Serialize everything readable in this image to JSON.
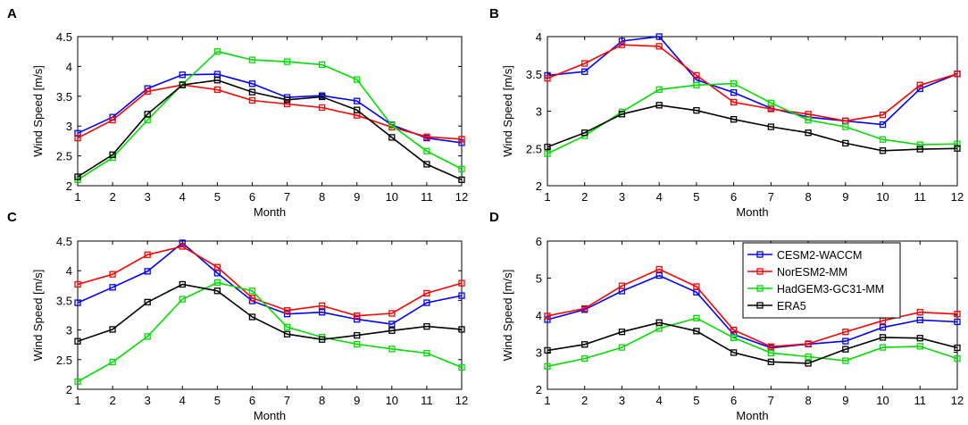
{
  "chart_data": [
    {
      "type": "line",
      "panel_label": "A",
      "xlabel": "Month",
      "ylabel": "Wind Speed [m/s]",
      "categories": [
        1,
        2,
        3,
        4,
        5,
        6,
        7,
        8,
        9,
        10,
        11,
        12
      ],
      "xticks": [
        "1",
        "2",
        "3",
        "4",
        "5",
        "6",
        "7",
        "8",
        "9",
        "10",
        "11",
        "12"
      ],
      "ylim": [
        2,
        4.5
      ],
      "yticks": [
        "2",
        "2.5",
        "3",
        "3.5",
        "4",
        "4.5"
      ],
      "series": [
        {
          "name": "CESM2-WACCM",
          "color": "#0000ff",
          "values": [
            2.88,
            3.15,
            3.63,
            3.86,
            3.87,
            3.71,
            3.48,
            3.51,
            3.42,
            3.02,
            2.8,
            2.72
          ]
        },
        {
          "name": "NorESM2-MM",
          "color": "#ff0000",
          "values": [
            2.8,
            3.1,
            3.58,
            3.69,
            3.61,
            3.43,
            3.37,
            3.31,
            3.18,
            2.98,
            2.82,
            2.78
          ]
        },
        {
          "name": "HadGEM3-GC31-MM",
          "color": "#00dd00",
          "values": [
            2.1,
            2.47,
            3.1,
            3.7,
            4.25,
            4.11,
            4.08,
            4.03,
            3.78,
            3.01,
            2.58,
            2.28
          ]
        },
        {
          "name": "ERA5",
          "color": "#000000",
          "values": [
            2.15,
            2.52,
            3.2,
            3.69,
            3.77,
            3.57,
            3.44,
            3.49,
            3.27,
            2.81,
            2.36,
            2.1
          ]
        }
      ]
    },
    {
      "type": "line",
      "panel_label": "B",
      "xlabel": "Month",
      "ylabel": "Wind Speed [m/s]",
      "categories": [
        1,
        2,
        3,
        4,
        5,
        6,
        7,
        8,
        9,
        10,
        11,
        12
      ],
      "xticks": [
        "1",
        "2",
        "3",
        "4",
        "5",
        "6",
        "7",
        "8",
        "9",
        "10",
        "11",
        "12"
      ],
      "ylim": [
        2,
        4
      ],
      "yticks": [
        "2",
        "2.5",
        "3",
        "3.5",
        "4"
      ],
      "series": [
        {
          "name": "CESM2-WACCM",
          "color": "#0000ff",
          "values": [
            3.48,
            3.53,
            3.94,
            4.0,
            3.42,
            3.25,
            3.04,
            2.92,
            2.87,
            2.82,
            3.3,
            3.5
          ]
        },
        {
          "name": "NorESM2-MM",
          "color": "#ff0000",
          "values": [
            3.44,
            3.64,
            3.89,
            3.87,
            3.48,
            3.12,
            3.03,
            2.96,
            2.87,
            2.95,
            3.35,
            3.5
          ]
        },
        {
          "name": "HadGEM3-GC31-MM",
          "color": "#00dd00",
          "values": [
            2.43,
            2.67,
            2.99,
            3.29,
            3.35,
            3.37,
            3.11,
            2.88,
            2.79,
            2.62,
            2.55,
            2.56
          ]
        },
        {
          "name": "ERA5",
          "color": "#000000",
          "values": [
            2.52,
            2.71,
            2.96,
            3.08,
            3.01,
            2.89,
            2.79,
            2.71,
            2.57,
            2.47,
            2.49,
            2.5
          ]
        }
      ]
    },
    {
      "type": "line",
      "panel_label": "C",
      "xlabel": "Month",
      "ylabel": "Wind Speed [m/s]",
      "categories": [
        1,
        2,
        3,
        4,
        5,
        6,
        7,
        8,
        9,
        10,
        11,
        12
      ],
      "xticks": [
        "1",
        "2",
        "3",
        "4",
        "5",
        "6",
        "7",
        "8",
        "9",
        "10",
        "11",
        "12"
      ],
      "ylim": [
        2,
        4.5
      ],
      "yticks": [
        "2",
        "2.5",
        "3",
        "3.5",
        "4",
        "4.5"
      ],
      "series": [
        {
          "name": "CESM2-WACCM",
          "color": "#0000ff",
          "values": [
            3.46,
            3.72,
            3.99,
            4.47,
            3.96,
            3.49,
            3.27,
            3.3,
            3.18,
            3.1,
            3.46,
            3.58
          ]
        },
        {
          "name": "NorESM2-MM",
          "color": "#ff0000",
          "values": [
            3.77,
            3.94,
            4.27,
            4.41,
            4.06,
            3.54,
            3.33,
            3.41,
            3.24,
            3.28,
            3.62,
            3.79
          ]
        },
        {
          "name": "HadGEM3-GC31-MM",
          "color": "#00dd00",
          "values": [
            2.13,
            2.46,
            2.89,
            3.52,
            3.8,
            3.66,
            3.05,
            2.88,
            2.76,
            2.68,
            2.61,
            2.37
          ]
        },
        {
          "name": "ERA5",
          "color": "#000000",
          "values": [
            2.81,
            3.01,
            3.47,
            3.77,
            3.66,
            3.22,
            2.93,
            2.84,
            2.91,
            2.99,
            3.06,
            3.01
          ]
        }
      ]
    },
    {
      "type": "line",
      "panel_label": "D",
      "xlabel": "Month",
      "ylabel": "Wind Speed [m/s]",
      "categories": [
        1,
        2,
        3,
        4,
        5,
        6,
        7,
        8,
        9,
        10,
        11,
        12
      ],
      "xticks": [
        "1",
        "2",
        "3",
        "4",
        "5",
        "6",
        "7",
        "8",
        "9",
        "10",
        "11",
        "12"
      ],
      "ylim": [
        2,
        6
      ],
      "yticks": [
        "2",
        "3",
        "4",
        "5",
        "6"
      ],
      "legend": {
        "position": "top-right",
        "entries": [
          "CESM2-WACCM",
          "NorESM2-MM",
          "HadGEM3-GC31-MM",
          "ERA5"
        ]
      },
      "series": [
        {
          "name": "CESM2-WACCM",
          "color": "#0000ff",
          "values": [
            3.88,
            4.15,
            4.65,
            5.07,
            4.62,
            3.48,
            3.12,
            3.22,
            3.3,
            3.67,
            3.87,
            3.82
          ]
        },
        {
          "name": "NorESM2-MM",
          "color": "#ff0000",
          "values": [
            3.98,
            4.18,
            4.79,
            5.24,
            4.77,
            3.6,
            3.15,
            3.23,
            3.55,
            3.85,
            4.08,
            4.03
          ]
        },
        {
          "name": "HadGEM3-GC31-MM",
          "color": "#00dd00",
          "values": [
            2.62,
            2.83,
            3.13,
            3.64,
            3.92,
            3.39,
            2.98,
            2.88,
            2.77,
            3.13,
            3.16,
            2.83
          ]
        },
        {
          "name": "ERA5",
          "color": "#000000",
          "values": [
            3.05,
            3.21,
            3.55,
            3.8,
            3.57,
            2.99,
            2.74,
            2.7,
            3.08,
            3.4,
            3.38,
            3.12
          ]
        }
      ]
    }
  ]
}
